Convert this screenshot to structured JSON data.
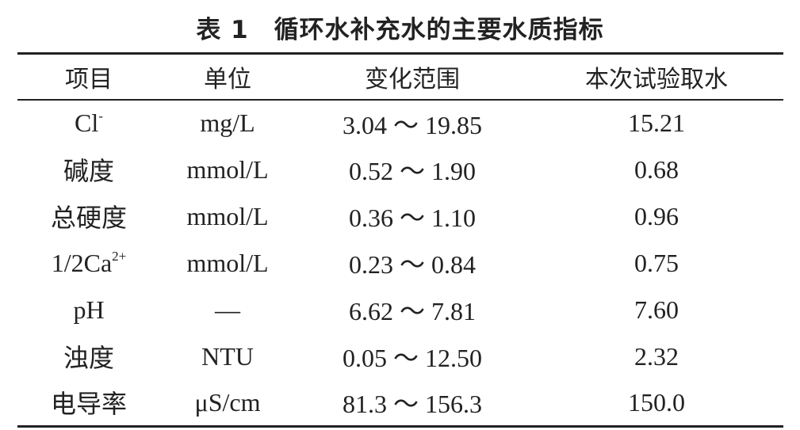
{
  "title": "表 1　循环水补充水的主要水质指标",
  "table": {
    "header": [
      "项目",
      "单位",
      "变化范围",
      "本次试验取水"
    ],
    "rows": [
      [
        {
          "base": "Cl",
          "sup": "-"
        },
        "mg/L",
        "3.04 ～ 19.85",
        "15.21"
      ],
      [
        "碱度",
        "mmol/L",
        "0.52 ～ 1.90",
        "0.68"
      ],
      [
        "总硬度",
        "mmol/L",
        "0.36 ～ 1.10",
        "0.96"
      ],
      [
        {
          "base": "1/2Ca",
          "sup": "2+"
        },
        "mmol/L",
        "0.23 ～ 0.84",
        "0.75"
      ],
      [
        "pH",
        "—",
        "6.62 ～ 7.81",
        "7.60"
      ],
      [
        "浊度",
        "NTU",
        "0.05 ～ 12.50",
        "2.32"
      ],
      [
        "电导率",
        "μS/cm",
        "81.3 ～ 156.3",
        "150.0"
      ]
    ]
  }
}
